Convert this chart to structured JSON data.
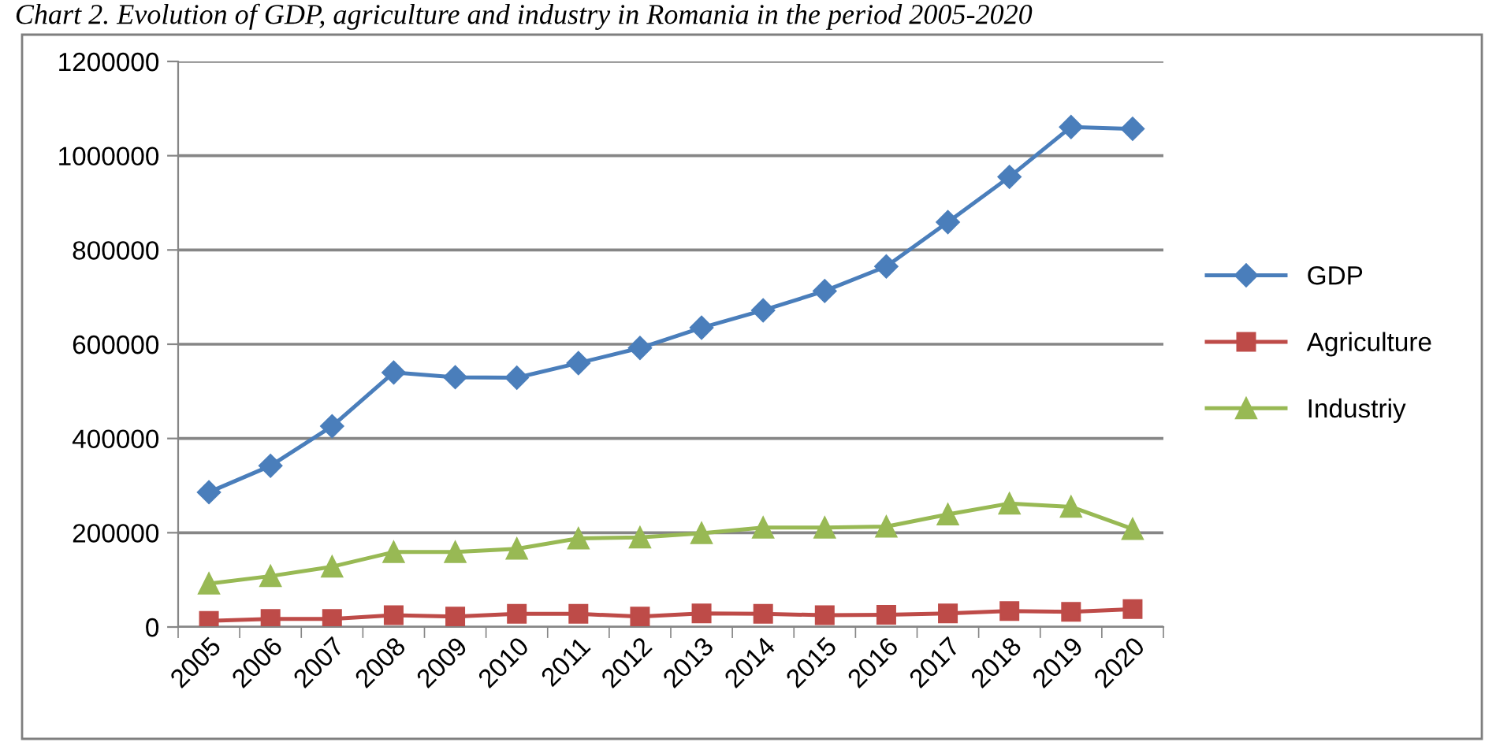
{
  "chart_data": {
    "type": "line",
    "title": "Chart 2. Evolution of GDP, agriculture and industry in Romania in the period 2005-2020",
    "categories": [
      "2005",
      "2006",
      "2007",
      "2008",
      "2009",
      "2010",
      "2011",
      "2012",
      "2013",
      "2014",
      "2015",
      "2016",
      "2017",
      "2018",
      "2019",
      "2020"
    ],
    "series": [
      {
        "name": "GDP",
        "color": "#4a7ebb",
        "marker": "diamond",
        "values": [
          286000,
          342000,
          426000,
          540000,
          530000,
          529000,
          560000,
          592000,
          635000,
          672000,
          713000,
          765000,
          859000,
          955000,
          1061000,
          1057000
        ]
      },
      {
        "name": "Agriculture",
        "color": "#be4b48",
        "marker": "square",
        "values": [
          13000,
          17000,
          17000,
          25000,
          22000,
          28000,
          28000,
          22000,
          29000,
          28000,
          25000,
          26000,
          29000,
          34000,
          32000,
          38000
        ]
      },
      {
        "name": "Industriy",
        "color": "#98b954",
        "marker": "triangle",
        "values": [
          92000,
          108000,
          128000,
          159000,
          159000,
          166000,
          188000,
          190000,
          199000,
          211000,
          211000,
          213000,
          239000,
          262000,
          255000,
          208000
        ]
      }
    ],
    "ylim": [
      0,
      1200000
    ],
    "yticks": [
      0,
      200000,
      400000,
      600000,
      800000,
      1000000,
      1200000
    ],
    "grid": "y",
    "legend": "right"
  }
}
